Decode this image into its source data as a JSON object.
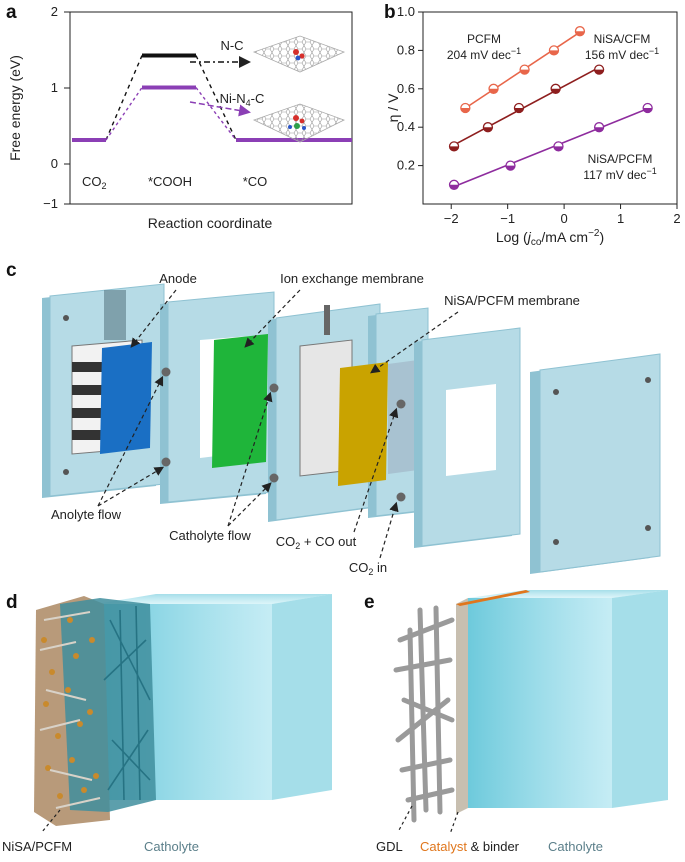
{
  "panels": {
    "a": "a",
    "b": "b",
    "c": "c",
    "d": "d",
    "e": "e"
  },
  "chart_data": [
    {
      "type": "line",
      "panel": "a",
      "xlabel": "Reaction coordinate",
      "ylabel": "Free energy (eV)",
      "ylim": [
        -1,
        2
      ],
      "yticks": [
        "2",
        "1",
        "0",
        "−1"
      ],
      "steps": [
        "CO2",
        "*COOH",
        "*CO"
      ],
      "step_labels": {
        "co2": "CO",
        "co2_sub": "2",
        "cooh": "*COOH",
        "co": "*CO"
      },
      "series": [
        {
          "name": "N-C",
          "values": [
            0,
            1.32,
            0
          ],
          "color": "#111111"
        },
        {
          "name": "Ni-N4-C",
          "values": [
            0,
            0.82,
            0
          ],
          "color": "#8b3fb5"
        }
      ],
      "series_labels": {
        "nc": "N-C",
        "nin4c_a": "Ni-N",
        "nin4c_sub": "4",
        "nin4c_b": "-C"
      }
    },
    {
      "type": "scatter",
      "panel": "b",
      "xlabel_parts": {
        "a": "Log (",
        "j": "j",
        "sub": "co",
        "b": "/mA cm",
        "sup": "−2",
        "c": ")"
      },
      "ylabel": "η / V",
      "xlim": [
        -2.5,
        2
      ],
      "ylim": [
        0,
        1.0
      ],
      "xticks": [
        "−2",
        "−1",
        "0",
        "1",
        "2"
      ],
      "yticks": [
        "1.0",
        "0.8",
        "0.6",
        "0.4",
        "0.2"
      ],
      "series": [
        {
          "name": "PCFM",
          "slope_label": "204 mV dec",
          "color": "#e8664a",
          "x": [
            -1.75,
            -1.25,
            -0.7,
            -0.18,
            0.28
          ],
          "y": [
            0.5,
            0.6,
            0.7,
            0.8,
            0.9
          ]
        },
        {
          "name": "NiSA/CFM",
          "slope_label": "156 mV dec",
          "color": "#8e1e1e",
          "x": [
            -1.95,
            -1.35,
            -0.8,
            -0.15,
            0.62
          ],
          "y": [
            0.3,
            0.4,
            0.5,
            0.6,
            0.7
          ]
        },
        {
          "name": "NiSA/PCFM",
          "slope_label": "117 mV dec",
          "color": "#8e2c9e",
          "x": [
            -1.95,
            -0.95,
            -0.1,
            0.62,
            1.48
          ],
          "y": [
            0.1,
            0.2,
            0.3,
            0.4,
            0.5
          ]
        }
      ],
      "slope_unit_sup": "−1"
    }
  ],
  "panel_c": {
    "anode": "Anode",
    "ion_membrane": "Ion exchange membrane",
    "nisa_membrane": "NiSA/PCFM membrane",
    "anolyte": "Anolyte flow",
    "catholyte": "Catholyte flow",
    "co2_co_out_a": "CO",
    "co2_co_out_sub": "2",
    "co2_co_out_b": " + CO out",
    "co2_in_a": "CO",
    "co2_in_sub": "2",
    "co2_in_b": " in"
  },
  "panel_d": {
    "material": "NiSA/PCFM",
    "catholyte": "Catholyte"
  },
  "panel_e": {
    "gdl": "GDL",
    "catalyst": "Catalyst",
    "binder": " & binder",
    "catholyte": "Catholyte"
  },
  "colors": {
    "nc_line": "#111111",
    "nin4c_line": "#8b3fb5",
    "plate": "#b6dbe6",
    "plate_dark": "#8fc2d2",
    "anode": "#1a6fc4",
    "membrane_green": "#1fb53a",
    "membrane_yellow": "#c9a300",
    "catholyte_text": "#5b7f8a",
    "catalyst_text": "#e0761c"
  }
}
